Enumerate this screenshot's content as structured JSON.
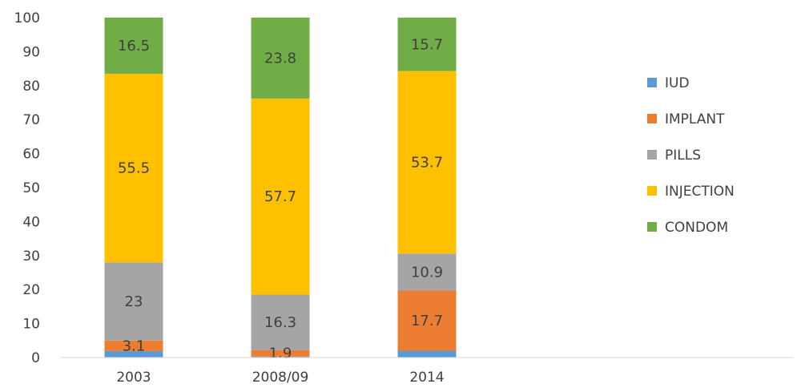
{
  "chart_data": {
    "type": "bar",
    "stacked": true,
    "categories": [
      "2003",
      "2008/09",
      "2014"
    ],
    "series": [
      {
        "name": "IUD",
        "color": "#5B9BD5",
        "values": [
          1.9,
          0.3,
          2.0
        ],
        "labels": [
          "",
          "",
          ""
        ]
      },
      {
        "name": "IMPLANT",
        "color": "#ED7D31",
        "values": [
          3.1,
          1.9,
          17.7
        ],
        "labels": [
          "3.1",
          "1.9",
          "17.7"
        ]
      },
      {
        "name": "PILLS",
        "color": "#A5A5A5",
        "values": [
          23,
          16.3,
          10.9
        ],
        "labels": [
          "23",
          "16.3",
          "10.9"
        ]
      },
      {
        "name": "INJECTION",
        "color": "#FFC000",
        "values": [
          55.5,
          57.7,
          53.7
        ],
        "labels": [
          "55.5",
          "57.7",
          "53.7"
        ]
      },
      {
        "name": "CONDOM",
        "color": "#70AD47",
        "values": [
          16.5,
          23.8,
          15.7
        ],
        "labels": [
          "16.5",
          "23.8",
          "15.7"
        ]
      }
    ],
    "y_ticks": [
      "0",
      "10",
      "20",
      "30",
      "40",
      "50",
      "60",
      "70",
      "80",
      "90",
      "100"
    ],
    "ylim": [
      0,
      100
    ],
    "legend_position": "right",
    "grid": false
  }
}
